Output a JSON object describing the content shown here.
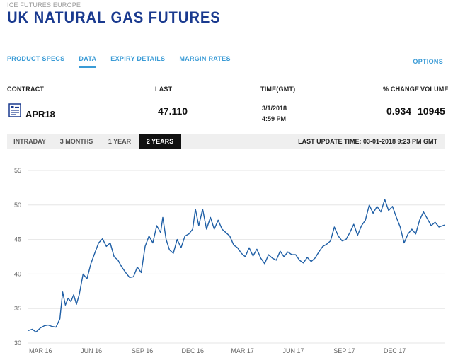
{
  "exchange": "ICE FUTURES EUROPE",
  "title": "UK NATURAL GAS FUTURES",
  "tabs": [
    {
      "label": "PRODUCT SPECS",
      "active": false
    },
    {
      "label": "DATA",
      "active": true
    },
    {
      "label": "EXPIRY DETAILS",
      "active": false
    },
    {
      "label": "MARGIN RATES",
      "active": false
    }
  ],
  "options_label": "OPTIONS",
  "table": {
    "headers": {
      "contract": "CONTRACT",
      "last": "LAST",
      "time": "TIME(GMT)",
      "change": "% CHANGE",
      "volume": "VOLUME"
    },
    "row": {
      "contract": "APR18",
      "last": "47.110",
      "date": "3/1/2018",
      "time": "4:59 PM",
      "change": "0.934",
      "volume": "10945"
    }
  },
  "ranges": [
    "INTRADAY",
    "3 MONTHS",
    "1 YEAR",
    "2 YEARS"
  ],
  "active_range": "2 YEARS",
  "last_update": "LAST UPDATE TIME: 03-01-2018 9:23 PM GMT",
  "colors": {
    "title": "#1a3a8f",
    "accent": "#3a9bd6",
    "line": "#1f5fa6"
  },
  "chart_data": {
    "type": "line",
    "title": "",
    "xlabel": "",
    "ylabel": "",
    "ylim": [
      30,
      55
    ],
    "yticks": [
      55,
      50,
      45,
      40,
      35,
      30
    ],
    "xlim": [
      "2016-02-08",
      "2018-03-01"
    ],
    "xticks": [
      {
        "label": "MAR 16",
        "date": "2016-03-01"
      },
      {
        "label": "JUN 16",
        "date": "2016-06-01"
      },
      {
        "label": "SEP 16",
        "date": "2016-09-01"
      },
      {
        "label": "DEC 16",
        "date": "2016-12-01"
      },
      {
        "label": "MAR 17",
        "date": "2017-03-01"
      },
      {
        "label": "JUN 17",
        "date": "2017-06-01"
      },
      {
        "label": "SEP 17",
        "date": "2017-09-01"
      },
      {
        "label": "DEC 17",
        "date": "2017-12-01"
      }
    ],
    "grid": true,
    "series": [
      {
        "name": "",
        "points": [
          [
            "2016-02-08",
            31.8
          ],
          [
            "2016-02-15",
            32.0
          ],
          [
            "2016-02-22",
            31.6
          ],
          [
            "2016-03-01",
            32.2
          ],
          [
            "2016-03-08",
            32.5
          ],
          [
            "2016-03-15",
            32.6
          ],
          [
            "2016-03-22",
            32.4
          ],
          [
            "2016-03-29",
            32.3
          ],
          [
            "2016-04-05",
            33.5
          ],
          [
            "2016-04-10",
            37.4
          ],
          [
            "2016-04-15",
            35.5
          ],
          [
            "2016-04-20",
            36.5
          ],
          [
            "2016-04-25",
            36.0
          ],
          [
            "2016-04-30",
            37.0
          ],
          [
            "2016-05-05",
            35.6
          ],
          [
            "2016-05-10",
            37.0
          ],
          [
            "2016-05-17",
            40.0
          ],
          [
            "2016-05-24",
            39.3
          ],
          [
            "2016-05-31",
            41.5
          ],
          [
            "2016-06-07",
            43.0
          ],
          [
            "2016-06-14",
            44.5
          ],
          [
            "2016-06-21",
            45.1
          ],
          [
            "2016-06-28",
            44.0
          ],
          [
            "2016-07-05",
            44.5
          ],
          [
            "2016-07-12",
            42.5
          ],
          [
            "2016-07-19",
            42.0
          ],
          [
            "2016-07-26",
            41.0
          ],
          [
            "2016-08-02",
            40.2
          ],
          [
            "2016-08-09",
            39.5
          ],
          [
            "2016-08-16",
            39.6
          ],
          [
            "2016-08-23",
            41.0
          ],
          [
            "2016-08-30",
            40.2
          ],
          [
            "2016-09-06",
            44.0
          ],
          [
            "2016-09-13",
            45.5
          ],
          [
            "2016-09-20",
            44.5
          ],
          [
            "2016-09-27",
            47.0
          ],
          [
            "2016-10-04",
            46.0
          ],
          [
            "2016-10-08",
            48.2
          ],
          [
            "2016-10-14",
            45.0
          ],
          [
            "2016-10-20",
            43.5
          ],
          [
            "2016-10-27",
            43.0
          ],
          [
            "2016-11-03",
            45.0
          ],
          [
            "2016-11-10",
            43.8
          ],
          [
            "2016-11-17",
            45.5
          ],
          [
            "2016-11-24",
            45.8
          ],
          [
            "2016-12-01",
            46.5
          ],
          [
            "2016-12-06",
            49.4
          ],
          [
            "2016-12-12",
            47.0
          ],
          [
            "2016-12-19",
            49.4
          ],
          [
            "2016-12-26",
            46.5
          ],
          [
            "2017-01-02",
            48.2
          ],
          [
            "2017-01-09",
            46.5
          ],
          [
            "2017-01-16",
            47.8
          ],
          [
            "2017-01-23",
            46.5
          ],
          [
            "2017-01-30",
            46.0
          ],
          [
            "2017-02-06",
            45.5
          ],
          [
            "2017-02-13",
            44.2
          ],
          [
            "2017-02-20",
            43.8
          ],
          [
            "2017-02-27",
            43.0
          ],
          [
            "2017-03-06",
            42.5
          ],
          [
            "2017-03-13",
            43.8
          ],
          [
            "2017-03-20",
            42.6
          ],
          [
            "2017-03-27",
            43.6
          ],
          [
            "2017-04-03",
            42.3
          ],
          [
            "2017-04-10",
            41.5
          ],
          [
            "2017-04-17",
            42.8
          ],
          [
            "2017-04-24",
            42.3
          ],
          [
            "2017-05-01",
            42.0
          ],
          [
            "2017-05-08",
            43.3
          ],
          [
            "2017-05-15",
            42.5
          ],
          [
            "2017-05-22",
            43.2
          ],
          [
            "2017-05-29",
            42.8
          ],
          [
            "2017-06-05",
            42.8
          ],
          [
            "2017-06-12",
            42.0
          ],
          [
            "2017-06-19",
            41.6
          ],
          [
            "2017-06-26",
            42.4
          ],
          [
            "2017-07-03",
            41.8
          ],
          [
            "2017-07-10",
            42.3
          ],
          [
            "2017-07-17",
            43.2
          ],
          [
            "2017-07-24",
            44.0
          ],
          [
            "2017-07-31",
            44.3
          ],
          [
            "2017-08-07",
            44.8
          ],
          [
            "2017-08-14",
            46.8
          ],
          [
            "2017-08-21",
            45.5
          ],
          [
            "2017-08-28",
            44.8
          ],
          [
            "2017-09-04",
            45.0
          ],
          [
            "2017-09-11",
            46.0
          ],
          [
            "2017-09-18",
            47.2
          ],
          [
            "2017-09-25",
            45.6
          ],
          [
            "2017-10-02",
            47.0
          ],
          [
            "2017-10-09",
            47.8
          ],
          [
            "2017-10-16",
            50.0
          ],
          [
            "2017-10-23",
            48.8
          ],
          [
            "2017-10-30",
            49.8
          ],
          [
            "2017-11-06",
            49.0
          ],
          [
            "2017-11-13",
            50.8
          ],
          [
            "2017-11-20",
            49.2
          ],
          [
            "2017-11-27",
            49.8
          ],
          [
            "2017-12-04",
            48.2
          ],
          [
            "2017-12-11",
            46.8
          ],
          [
            "2017-12-18",
            44.5
          ],
          [
            "2017-12-25",
            45.8
          ],
          [
            "2018-01-01",
            46.5
          ],
          [
            "2018-01-08",
            45.8
          ],
          [
            "2018-01-15",
            47.8
          ],
          [
            "2018-01-22",
            49.0
          ],
          [
            "2018-01-29",
            48.0
          ],
          [
            "2018-02-05",
            47.0
          ],
          [
            "2018-02-12",
            47.5
          ],
          [
            "2018-02-19",
            46.8
          ],
          [
            "2018-03-01",
            47.1
          ]
        ]
      }
    ]
  }
}
